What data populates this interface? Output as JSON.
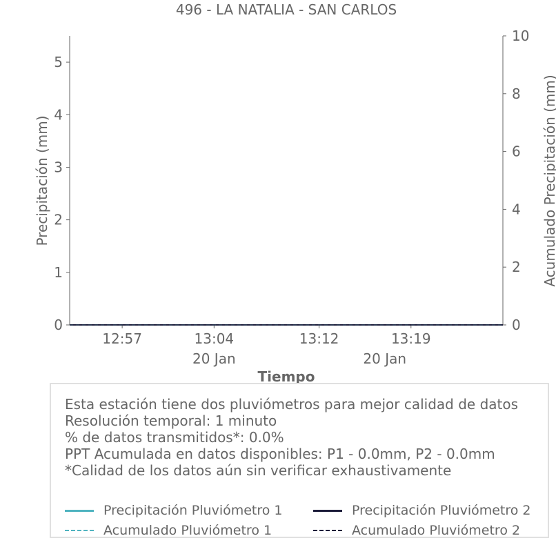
{
  "chart_data": {
    "type": "line",
    "title": "496 - LA NATALIA - SAN CARLOS",
    "xlabel": "Tiempo",
    "ylabel": "Precipitación (mm)",
    "y2label": "Acumulado Precipitación (mm)",
    "ylim": [
      0,
      5.5
    ],
    "y2lim": [
      0,
      10
    ],
    "yticks": [
      0,
      1,
      2,
      3,
      4,
      5
    ],
    "y2ticks": [
      0,
      2,
      4,
      6,
      8,
      10
    ],
    "xlim": [
      "12:53",
      "13:26"
    ],
    "xticks": [
      {
        "time": "12:57",
        "label": "12:57"
      },
      {
        "time": "13:04",
        "label": "13:04"
      },
      {
        "time": "13:12",
        "label": "13:12"
      },
      {
        "time": "13:19",
        "label": "13:19"
      }
    ],
    "xdate_labels": [
      {
        "time": "13:04",
        "label": "20 Jan"
      },
      {
        "time": "13:17",
        "label": "20 Jan"
      }
    ],
    "grid": false,
    "series": [
      {
        "name": "Precipitación Pluviómetro 1",
        "axis": "left",
        "style": "solid",
        "color": "#4fb3c0",
        "x": [
          "12:53",
          "13:26"
        ],
        "values": [
          0,
          0
        ]
      },
      {
        "name": "Precipitación Pluviómetro 2",
        "axis": "left",
        "style": "solid",
        "color": "#1c1c3a",
        "x": [
          "12:53",
          "13:26"
        ],
        "values": [
          0,
          0
        ]
      },
      {
        "name": "Acumulado Pluviómetro 1",
        "axis": "right",
        "style": "dashed",
        "color": "#4fb3c0",
        "x": [
          "12:53",
          "13:26"
        ],
        "values": [
          0,
          0
        ]
      },
      {
        "name": "Acumulado Pluviómetro 2",
        "axis": "right",
        "style": "dashed",
        "color": "#1c1c3a",
        "x": [
          "12:53",
          "13:26"
        ],
        "values": [
          0,
          0
        ]
      }
    ]
  },
  "info": {
    "line1": "Esta estación tiene dos pluviómetros para mejor calidad de datos",
    "line2": "Resolución temporal: 1 minuto",
    "line3": "% de datos transmitidos*: 0.0%",
    "line4": "PPT Acumulada en datos disponibles: P1 - 0.0mm, P2 - 0.0mm",
    "line5": "*Calidad de los datos aún sin verificar exhaustivamente"
  },
  "legend": {
    "items": [
      {
        "label": "Precipitación Pluviómetro 1",
        "color": "#4fb3c0",
        "style": "solid"
      },
      {
        "label": "Precipitación Pluviómetro 2",
        "color": "#1c1c3a",
        "style": "solid"
      },
      {
        "label": "Acumulado Pluviómetro 1",
        "color": "#4fb3c0",
        "style": "dashed"
      },
      {
        "label": "Acumulado Pluviómetro 2",
        "color": "#1c1c3a",
        "style": "dashed"
      }
    ]
  }
}
